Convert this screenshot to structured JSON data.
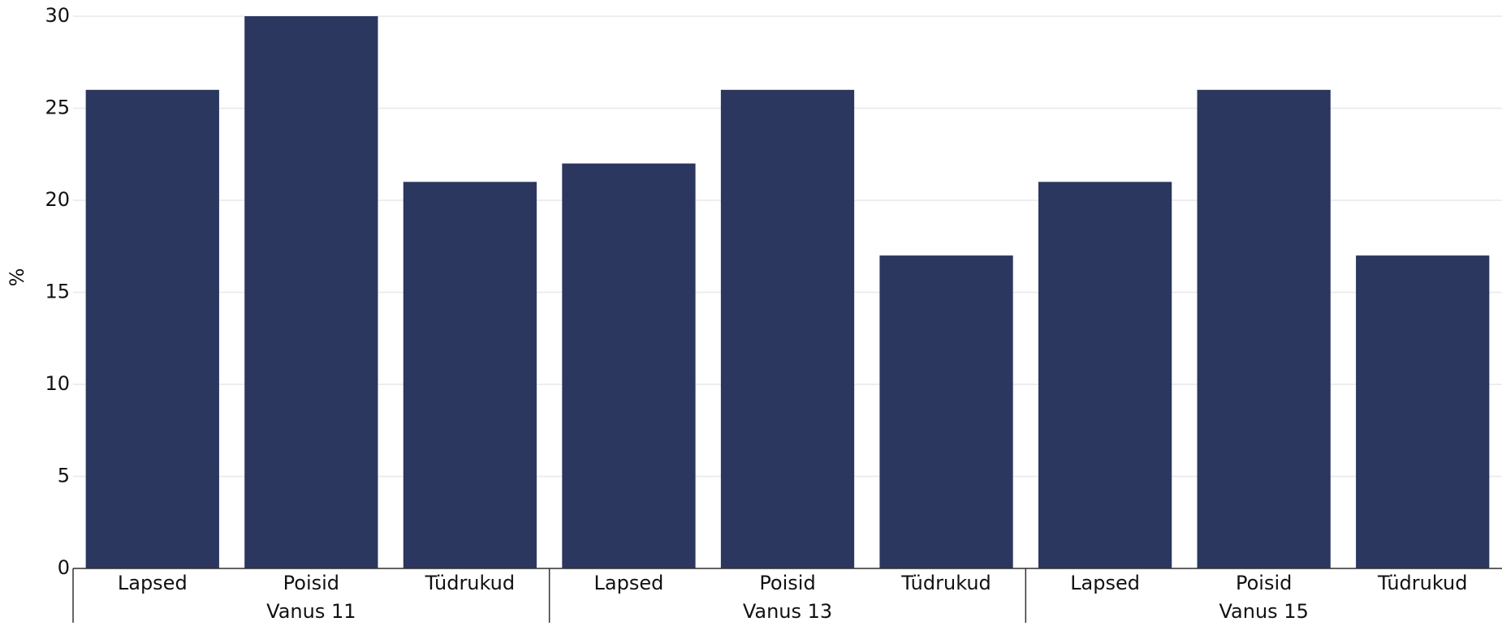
{
  "chart_data": {
    "type": "bar",
    "y_label": "%",
    "categories": [
      "Lapsed",
      "Poisid",
      "Tüdrukud",
      "Lapsed",
      "Poisid",
      "Tüdrukud",
      "Lapsed",
      "Poisid",
      "Tüdrukud"
    ],
    "groups": [
      "Vanus 11",
      "Vanus 13",
      "Vanus 15"
    ],
    "values": [
      26,
      30,
      21,
      22,
      26,
      17,
      21,
      26,
      17
    ],
    "color": "#2b375f",
    "ylim": [
      0,
      30
    ],
    "yticks": [
      0,
      5,
      10,
      15,
      20,
      25,
      30
    ],
    "grid": true
  }
}
